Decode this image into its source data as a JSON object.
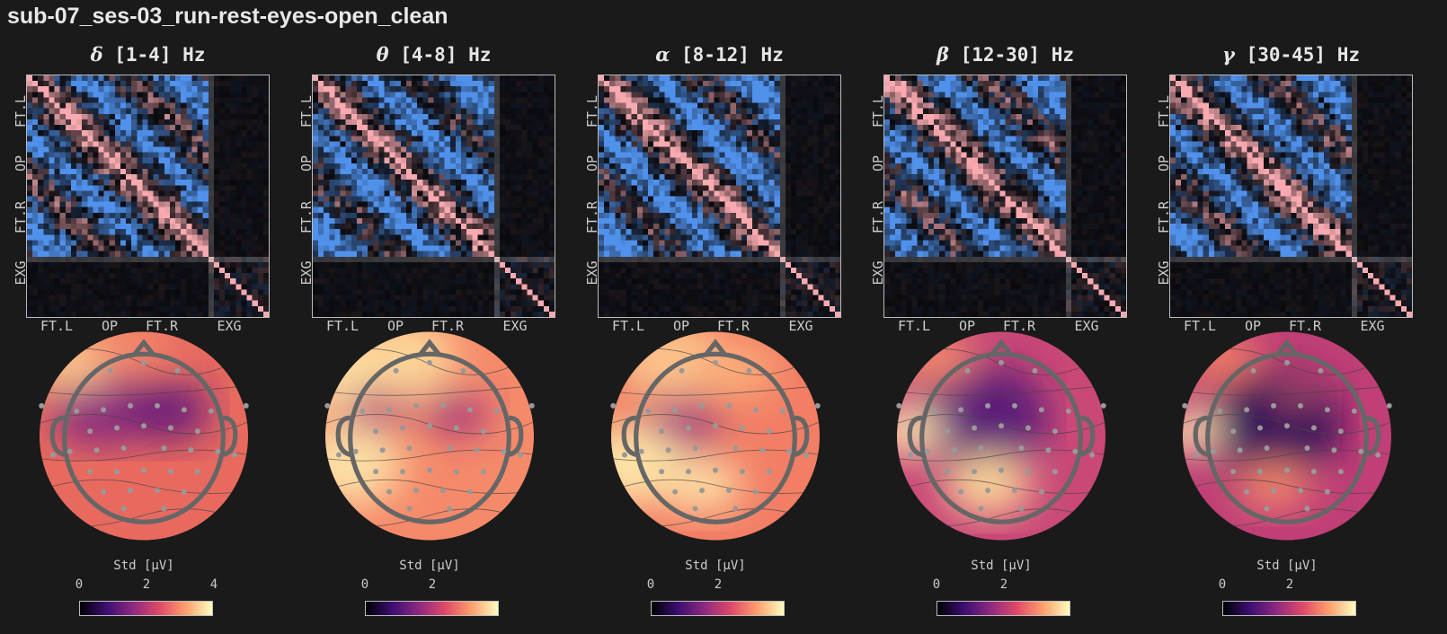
{
  "title": "sub-07_ses-03_run-rest-eyes-open_clean",
  "colors": {
    "positive": "#f4a3a8",
    "negative": "#4a8ae6",
    "background": "#1a1a1a"
  },
  "axis_groups": {
    "y": [
      "FT.L",
      "OP",
      "FT.R",
      "EXG"
    ],
    "x": [
      "FT.L",
      "OP",
      "FT.R",
      "EXG"
    ]
  },
  "colorbar_label": "Std [µV]",
  "chart_data": [
    {
      "type": "heatmap",
      "band_symbol": "δ",
      "band_range": "[1-4] Hz",
      "topomap_colorbar_ticks": [
        "0",
        "2",
        "4"
      ]
    },
    {
      "type": "heatmap",
      "band_symbol": "θ",
      "band_range": "[4-8] Hz",
      "topomap_colorbar_ticks": [
        "0",
        "2"
      ]
    },
    {
      "type": "heatmap",
      "band_symbol": "α",
      "band_range": "[8-12] Hz",
      "topomap_colorbar_ticks": [
        "0",
        "2"
      ]
    },
    {
      "type": "heatmap",
      "band_symbol": "β",
      "band_range": "[12-30] Hz",
      "topomap_colorbar_ticks": [
        "0",
        "2"
      ]
    },
    {
      "type": "heatmap",
      "band_symbol": "γ",
      "band_range": "[30-45] Hz",
      "topomap_colorbar_ticks": [
        "0",
        "2"
      ]
    }
  ]
}
